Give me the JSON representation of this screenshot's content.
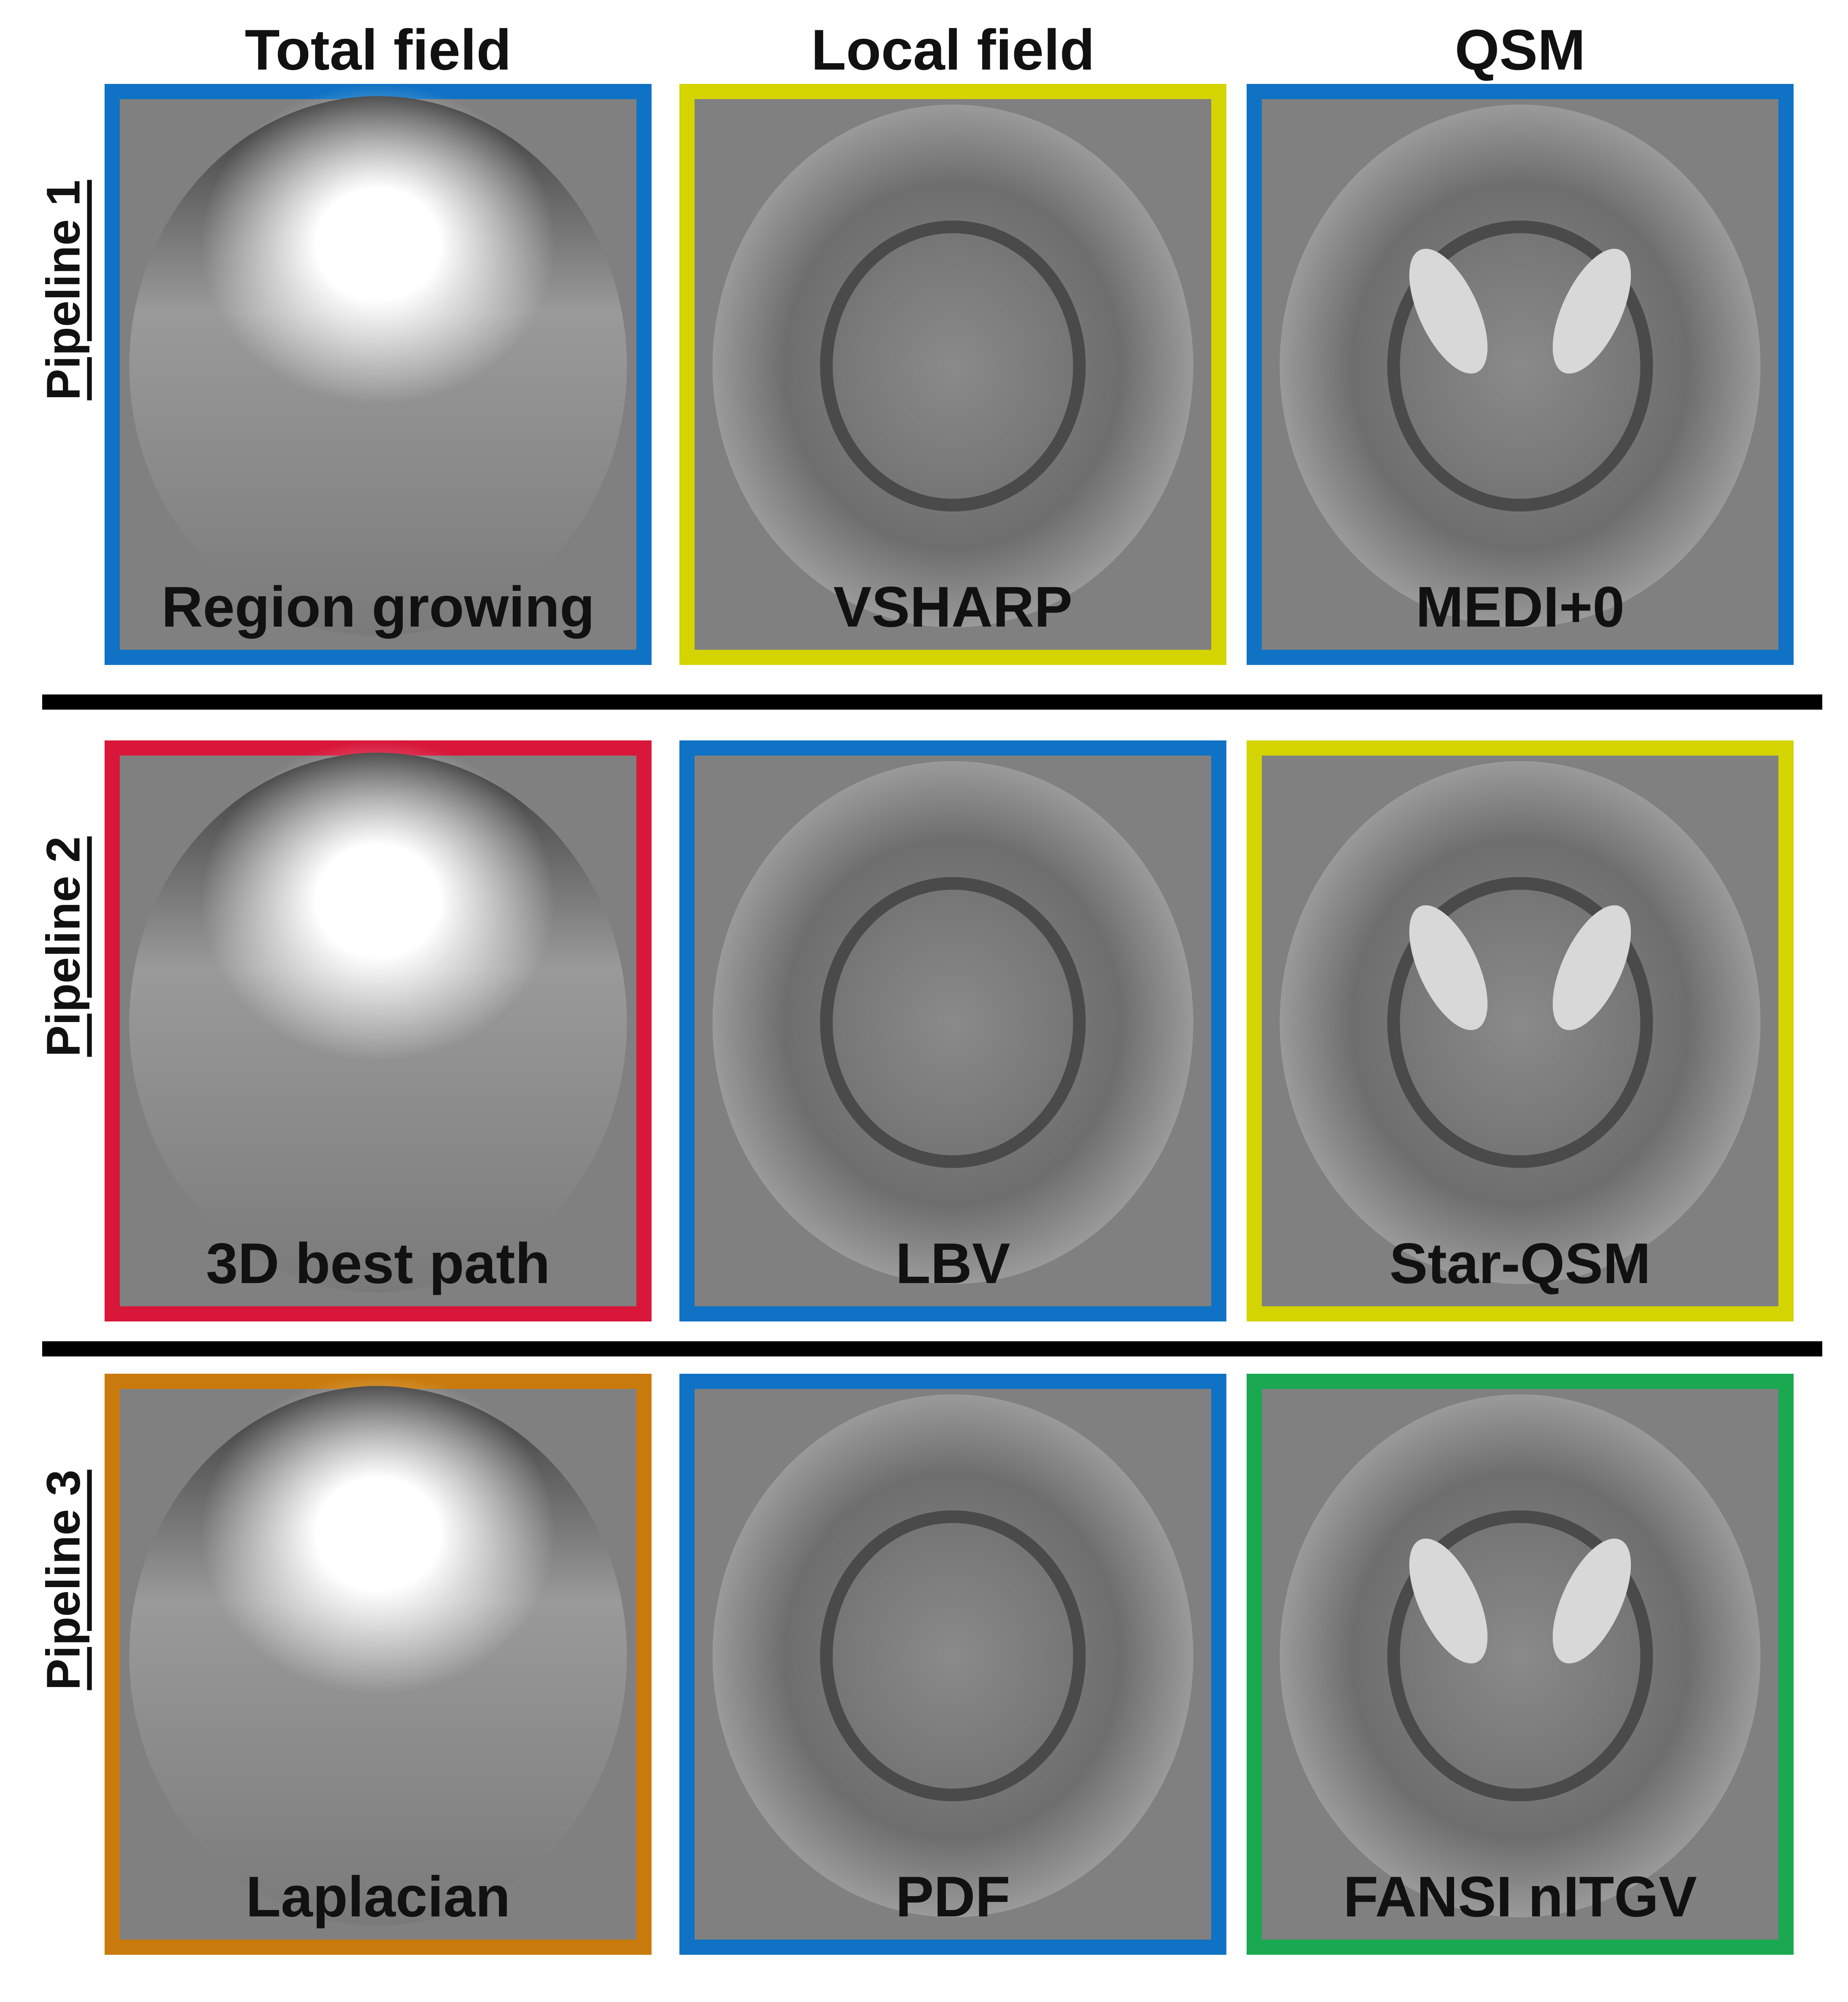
{
  "columns": [
    "Total field",
    "Local field",
    "QSM"
  ],
  "rows": [
    {
      "label": "Pipeline 1",
      "panels": [
        {
          "label": "Region growing",
          "color": "#0f72c4"
        },
        {
          "label": "VSHARP",
          "color": "#d4d400"
        },
        {
          "label": "MEDI+0",
          "color": "#0f72c4"
        }
      ]
    },
    {
      "label": "Pipeline 2",
      "panels": [
        {
          "label": "3D best path",
          "color": "#d8173a"
        },
        {
          "label": "LBV",
          "color": "#0f72c4"
        },
        {
          "label": "Star-QSM",
          "color": "#d4d400"
        }
      ]
    },
    {
      "label": "Pipeline 3",
      "panels": [
        {
          "label": "Laplacian",
          "color": "#c97a0c"
        },
        {
          "label": "PDF",
          "color": "#0f72c4"
        },
        {
          "label": "FANSI nITGV",
          "color": "#1aa850"
        }
      ]
    }
  ]
}
